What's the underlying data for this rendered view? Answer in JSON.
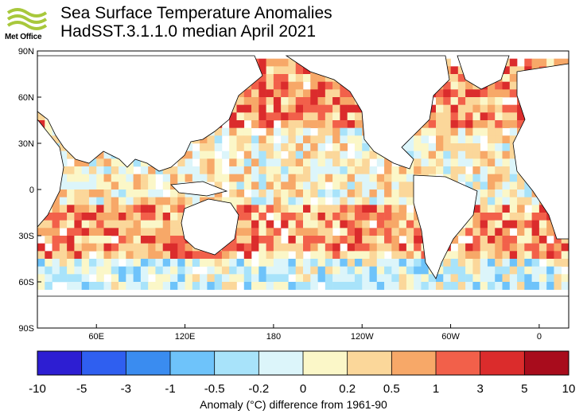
{
  "header": {
    "logo_label": "Met Office",
    "title": "Sea Surface Temperature Anomalies",
    "subtitle": "HadSST.3.1.1.0 median April 2021"
  },
  "map": {
    "lat_ticks": [
      "90N",
      "60N",
      "30N",
      "0",
      "30S",
      "60S",
      "90S"
    ],
    "lon_ticks": [
      "60E",
      "120E",
      "180",
      "120W",
      "60W",
      "0"
    ],
    "ocean_anomaly_regions": [
      {
        "area": "North Pacific",
        "level": "0.5 to 3"
      },
      {
        "area": "Tropical Pacific",
        "level": "-0.5 to 0.5"
      },
      {
        "area": "Indian Ocean",
        "level": "-1 to 0.5"
      },
      {
        "area": "North Atlantic",
        "level": "0.5 to 3"
      },
      {
        "area": "South Pacific",
        "level": "0.5 to 3"
      },
      {
        "area": "Southern Ocean",
        "level": "-1 to 0.5"
      }
    ]
  },
  "colorbar": {
    "tick_labels": [
      "-10",
      "-5",
      "-3",
      "-1",
      "-0.5",
      "-0.2",
      "0",
      "0.2",
      "0.5",
      "1",
      "3",
      "5",
      "10"
    ],
    "colors": [
      "#2d1ed2",
      "#2f5ff0",
      "#3a8cf0",
      "#6ec3fa",
      "#a8e3fa",
      "#dcf5fa",
      "#fbf7c8",
      "#fbd79a",
      "#f7a868",
      "#f2604a",
      "#db2c2c",
      "#a80c1c"
    ],
    "caption": "Anomaly (°C) difference from 1961-90"
  }
}
